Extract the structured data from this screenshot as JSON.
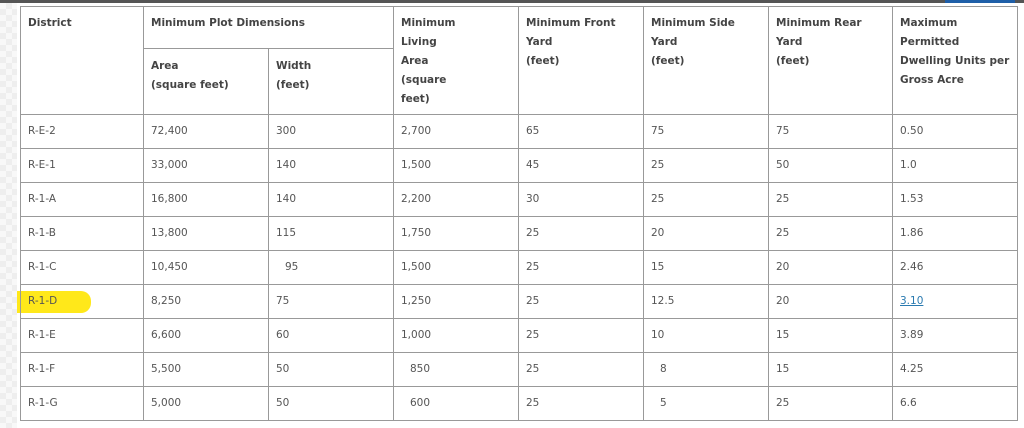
{
  "table": {
    "headers": {
      "district": "District",
      "plot": "Minimum Plot Dimensions",
      "area": [
        "Area",
        "(square feet)"
      ],
      "width": [
        "Width",
        "(feet)"
      ],
      "living": [
        "Minimum",
        "Living",
        "Area",
        "(square",
        "feet)"
      ],
      "front": [
        "Minimum Front Yard",
        "(feet)"
      ],
      "side": [
        "Minimum Side Yard",
        "(feet)"
      ],
      "rear": [
        "Minimum Rear Yard",
        "(feet)"
      ],
      "density": [
        "Maximum Permitted",
        "Dwelling Units per",
        "Gross Acre"
      ]
    },
    "rows": [
      [
        "R-E-2",
        "72,400",
        "300",
        "2,700",
        "65",
        "75",
        "75",
        "0.50"
      ],
      [
        "R-E-1",
        "33,000",
        "140",
        "1,500",
        "45",
        "25",
        "50",
        "1.0"
      ],
      [
        "R-1-A",
        "16,800",
        "140",
        "2,200",
        "30",
        "25",
        "25",
        "1.53"
      ],
      [
        "R-1-B",
        "13,800",
        "115",
        "1,750",
        "25",
        "20",
        "25",
        "1.86"
      ],
      [
        "R-1-C",
        "10,450",
        "95",
        "1,500",
        "25",
        "15",
        "20",
        "2.46"
      ],
      [
        "R-1-D",
        "8,250",
        "75",
        "1,250",
        "25",
        "12.5",
        "20",
        "3.10"
      ],
      [
        "R-1-E",
        "6,600",
        "60",
        "1,000",
        "25",
        "10",
        "15",
        "3.89"
      ],
      [
        "R-1-F",
        "5,500",
        "50",
        "850",
        "25",
        "8",
        "15",
        "4.25"
      ],
      [
        "R-1-G",
        "5,000",
        "50",
        "600",
        "25",
        "5",
        "25",
        "6.6"
      ]
    ],
    "highlighted_row": "R-1-D",
    "highlight_color": "#ffe81a",
    "link_color": "#2a7ab0"
  }
}
